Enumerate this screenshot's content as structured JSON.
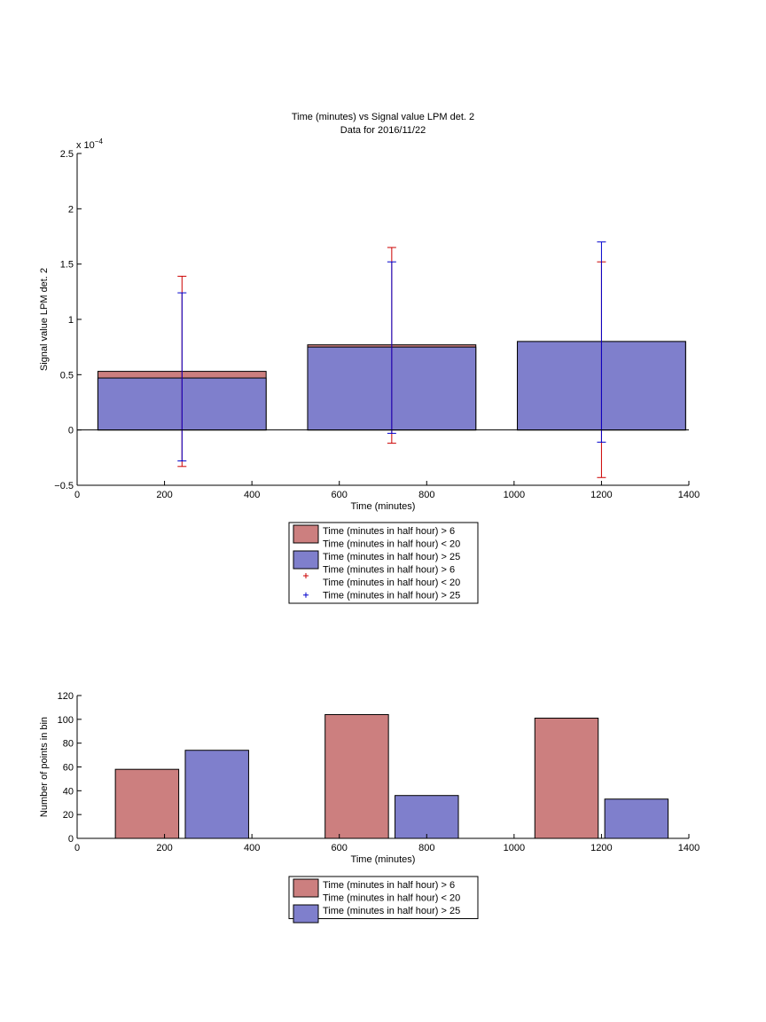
{
  "chart_data": [
    {
      "type": "bar",
      "title": "Time (minutes) vs Signal value LPM det. 2",
      "subtitle": "Data for 2016/11/22",
      "xlabel": "Time (minutes)",
      "ylabel": "Signal value LPM det. 2",
      "y_exponent": "x 10",
      "y_exponent_power": "−4",
      "xlim": [
        0,
        1400
      ],
      "ylim": [
        -0.5,
        2.5
      ],
      "xticks": [
        0,
        200,
        400,
        600,
        800,
        1000,
        1200,
        1400
      ],
      "yticks": [
        -0.5,
        0,
        0.5,
        1,
        1.5,
        2,
        2.5
      ],
      "xtick_labels": [
        "0",
        "200",
        "400",
        "600",
        "800",
        "1000",
        "1200",
        "1400"
      ],
      "ytick_labels": [
        "−0.5",
        "0",
        "0.5",
        "1",
        "1.5",
        "2",
        "2.5"
      ],
      "bars": {
        "centers": [
          240,
          720,
          1200
        ],
        "width": 385,
        "series": [
          {
            "name": "Time (minutes in half hour) > 6\nTime (minutes in half hour) < 20",
            "color": "#cc7f7f",
            "values": [
              0.53,
              0.77,
              0.8
            ]
          },
          {
            "name": "Time (minutes in half hour) > 25",
            "color": "#7f7fcc",
            "values": [
              0.47,
              0.75,
              0.8
            ]
          }
        ]
      },
      "errorbars": [
        {
          "name": "Time (minutes in half hour) > 6\nTime (minutes in half hour) < 20",
          "color": "#cc0000",
          "x": [
            240,
            720,
            1200
          ],
          "low": [
            -0.33,
            -0.12,
            -0.43
          ],
          "high": [
            1.39,
            1.65,
            1.52
          ]
        },
        {
          "name": "Time (minutes in half hour) > 25",
          "color": "#0000cc",
          "x": [
            240,
            720,
            1200
          ],
          "low": [
            -0.28,
            -0.03,
            -0.11
          ],
          "high": [
            1.24,
            1.52,
            1.7
          ]
        }
      ],
      "legend_position": "below",
      "legend": [
        {
          "label": "Time (minutes in half hour) > 6",
          "label2": "Time (minutes in half hour) < 20",
          "color": "#cc7f7f",
          "kind": "patch"
        },
        {
          "label": "Time (minutes in half hour) > 25",
          "color": "#7f7fcc",
          "kind": "patch"
        },
        {
          "label": "Time (minutes in half hour) > 6",
          "label2": "Time (minutes in half hour) < 20",
          "color": "#cc0000",
          "kind": "marker"
        },
        {
          "label": "Time (minutes in half hour) > 25",
          "color": "#0000cc",
          "kind": "marker"
        }
      ]
    },
    {
      "type": "bar",
      "xlabel": "Time (minutes)",
      "ylabel": "Number of points in bin",
      "xlim": [
        0,
        1400
      ],
      "ylim": [
        0,
        120
      ],
      "xticks": [
        0,
        200,
        400,
        600,
        800,
        1000,
        1200,
        1400
      ],
      "yticks": [
        0,
        20,
        40,
        60,
        80,
        100,
        120
      ],
      "xtick_labels": [
        "0",
        "200",
        "400",
        "600",
        "800",
        "1000",
        "1200",
        "1400"
      ],
      "ytick_labels": [
        "0",
        "20",
        "40",
        "60",
        "80",
        "100",
        "120"
      ],
      "bars": {
        "width": 145,
        "series": [
          {
            "name": "Time (minutes in half hour) > 6\nTime (minutes in half hour) < 20",
            "color": "#cc7f7f",
            "centers": [
              160,
              640,
              1120
            ],
            "values": [
              58,
              104,
              101
            ]
          },
          {
            "name": "Time (minutes in half hour) > 25",
            "color": "#7f7fcc",
            "centers": [
              320,
              800,
              1280
            ],
            "values": [
              74,
              36,
              33
            ]
          }
        ]
      },
      "legend_position": "below",
      "legend": [
        {
          "label": "Time (minutes in half hour) > 6",
          "label2": "Time (minutes in half hour) < 20",
          "color": "#cc7f7f",
          "kind": "patch"
        },
        {
          "label": "Time (minutes in half hour) > 25",
          "color": "#7f7fcc",
          "kind": "patch"
        }
      ]
    }
  ]
}
